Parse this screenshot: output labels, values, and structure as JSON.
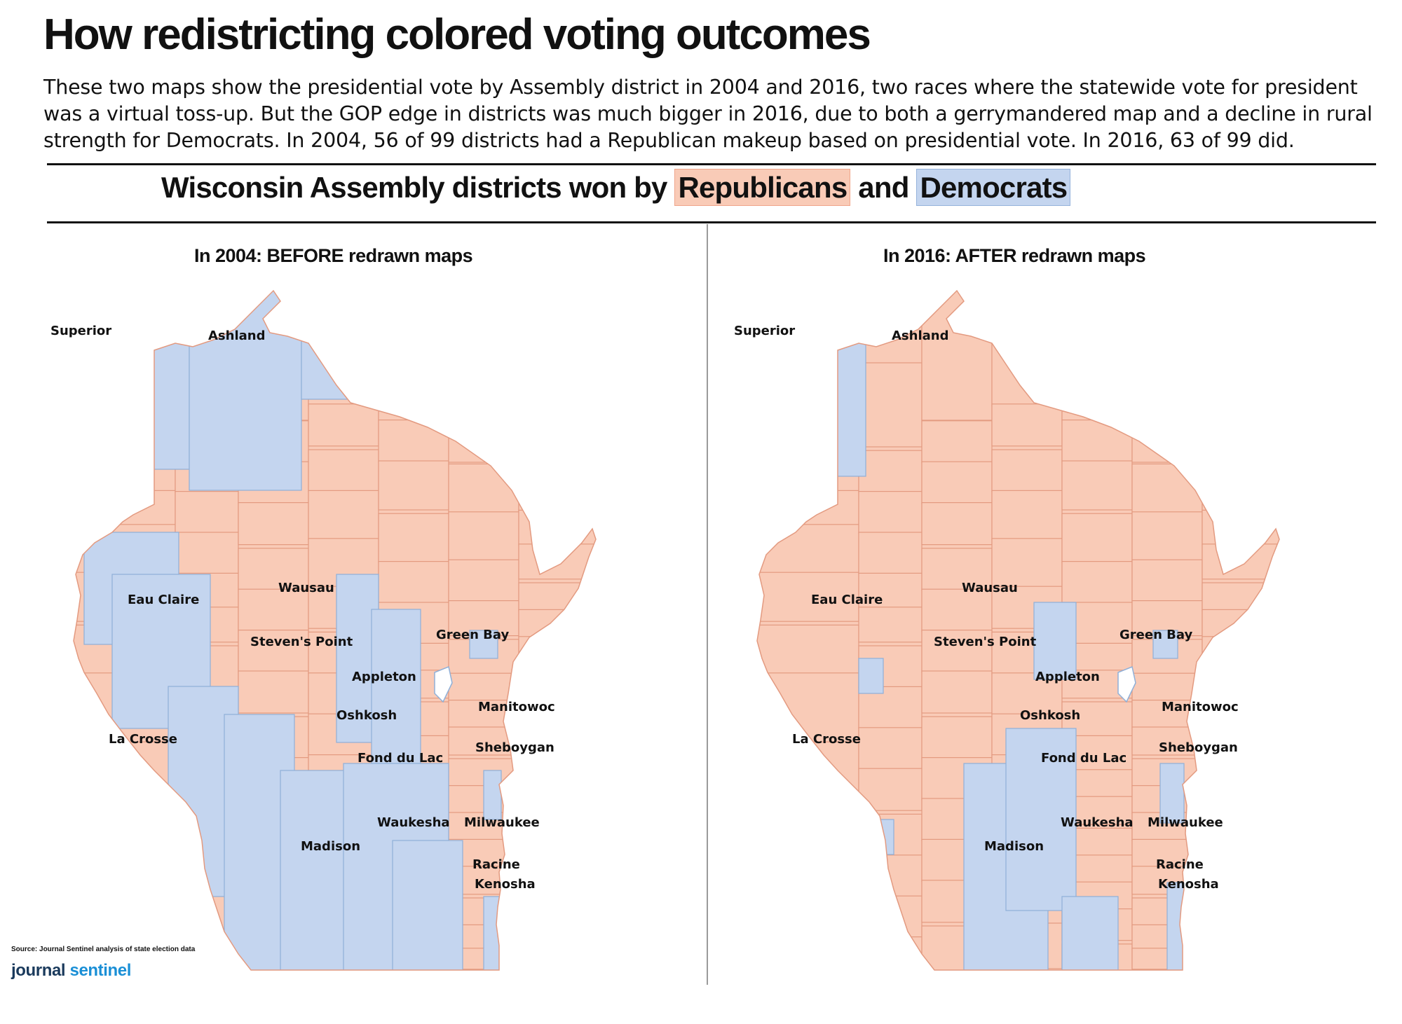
{
  "header": {
    "title": "How redistricting colored voting outcomes",
    "intro": "These two maps show the presidential vote by Assembly district in 2004 and 2016, two races where the statewide vote for president was a virtual toss-up. But the GOP edge in districts was much bigger in 2016, due to both a gerrymandered map and a decline in rural strength for Democrats.  In 2004, 56 of 99 districts had a Republican makeup based on presidential vote. In 2016, 63 of 99 did."
  },
  "legend": {
    "prefix": "Wisconsin Assembly districts won by",
    "republicans": "Republicans",
    "connector": "and",
    "democrats": "Democrats"
  },
  "colors": {
    "republican": "#f9cbb7",
    "democrat": "#c4d5ef",
    "district_border": "#e39a80"
  },
  "maps": [
    {
      "title": "In 2004: BEFORE redrawn maps"
    },
    {
      "title": "In 2016: AFTER redrawn maps"
    }
  ],
  "cities": [
    "Superior",
    "Ashland",
    "Eau Claire",
    "Wausau",
    "Steven's Point",
    "Green Bay",
    "Appleton",
    "Oshkosh",
    "Manitowoc",
    "La Crosse",
    "Sheboygan",
    "Fond du Lac",
    "Waukesha",
    "Milwaukee",
    "Madison",
    "Racine",
    "Kenosha"
  ],
  "footer": {
    "source": "Source: Journal Sentinel analysis of state election data",
    "brand_a": "journal",
    "brand_b": "sentinel"
  }
}
